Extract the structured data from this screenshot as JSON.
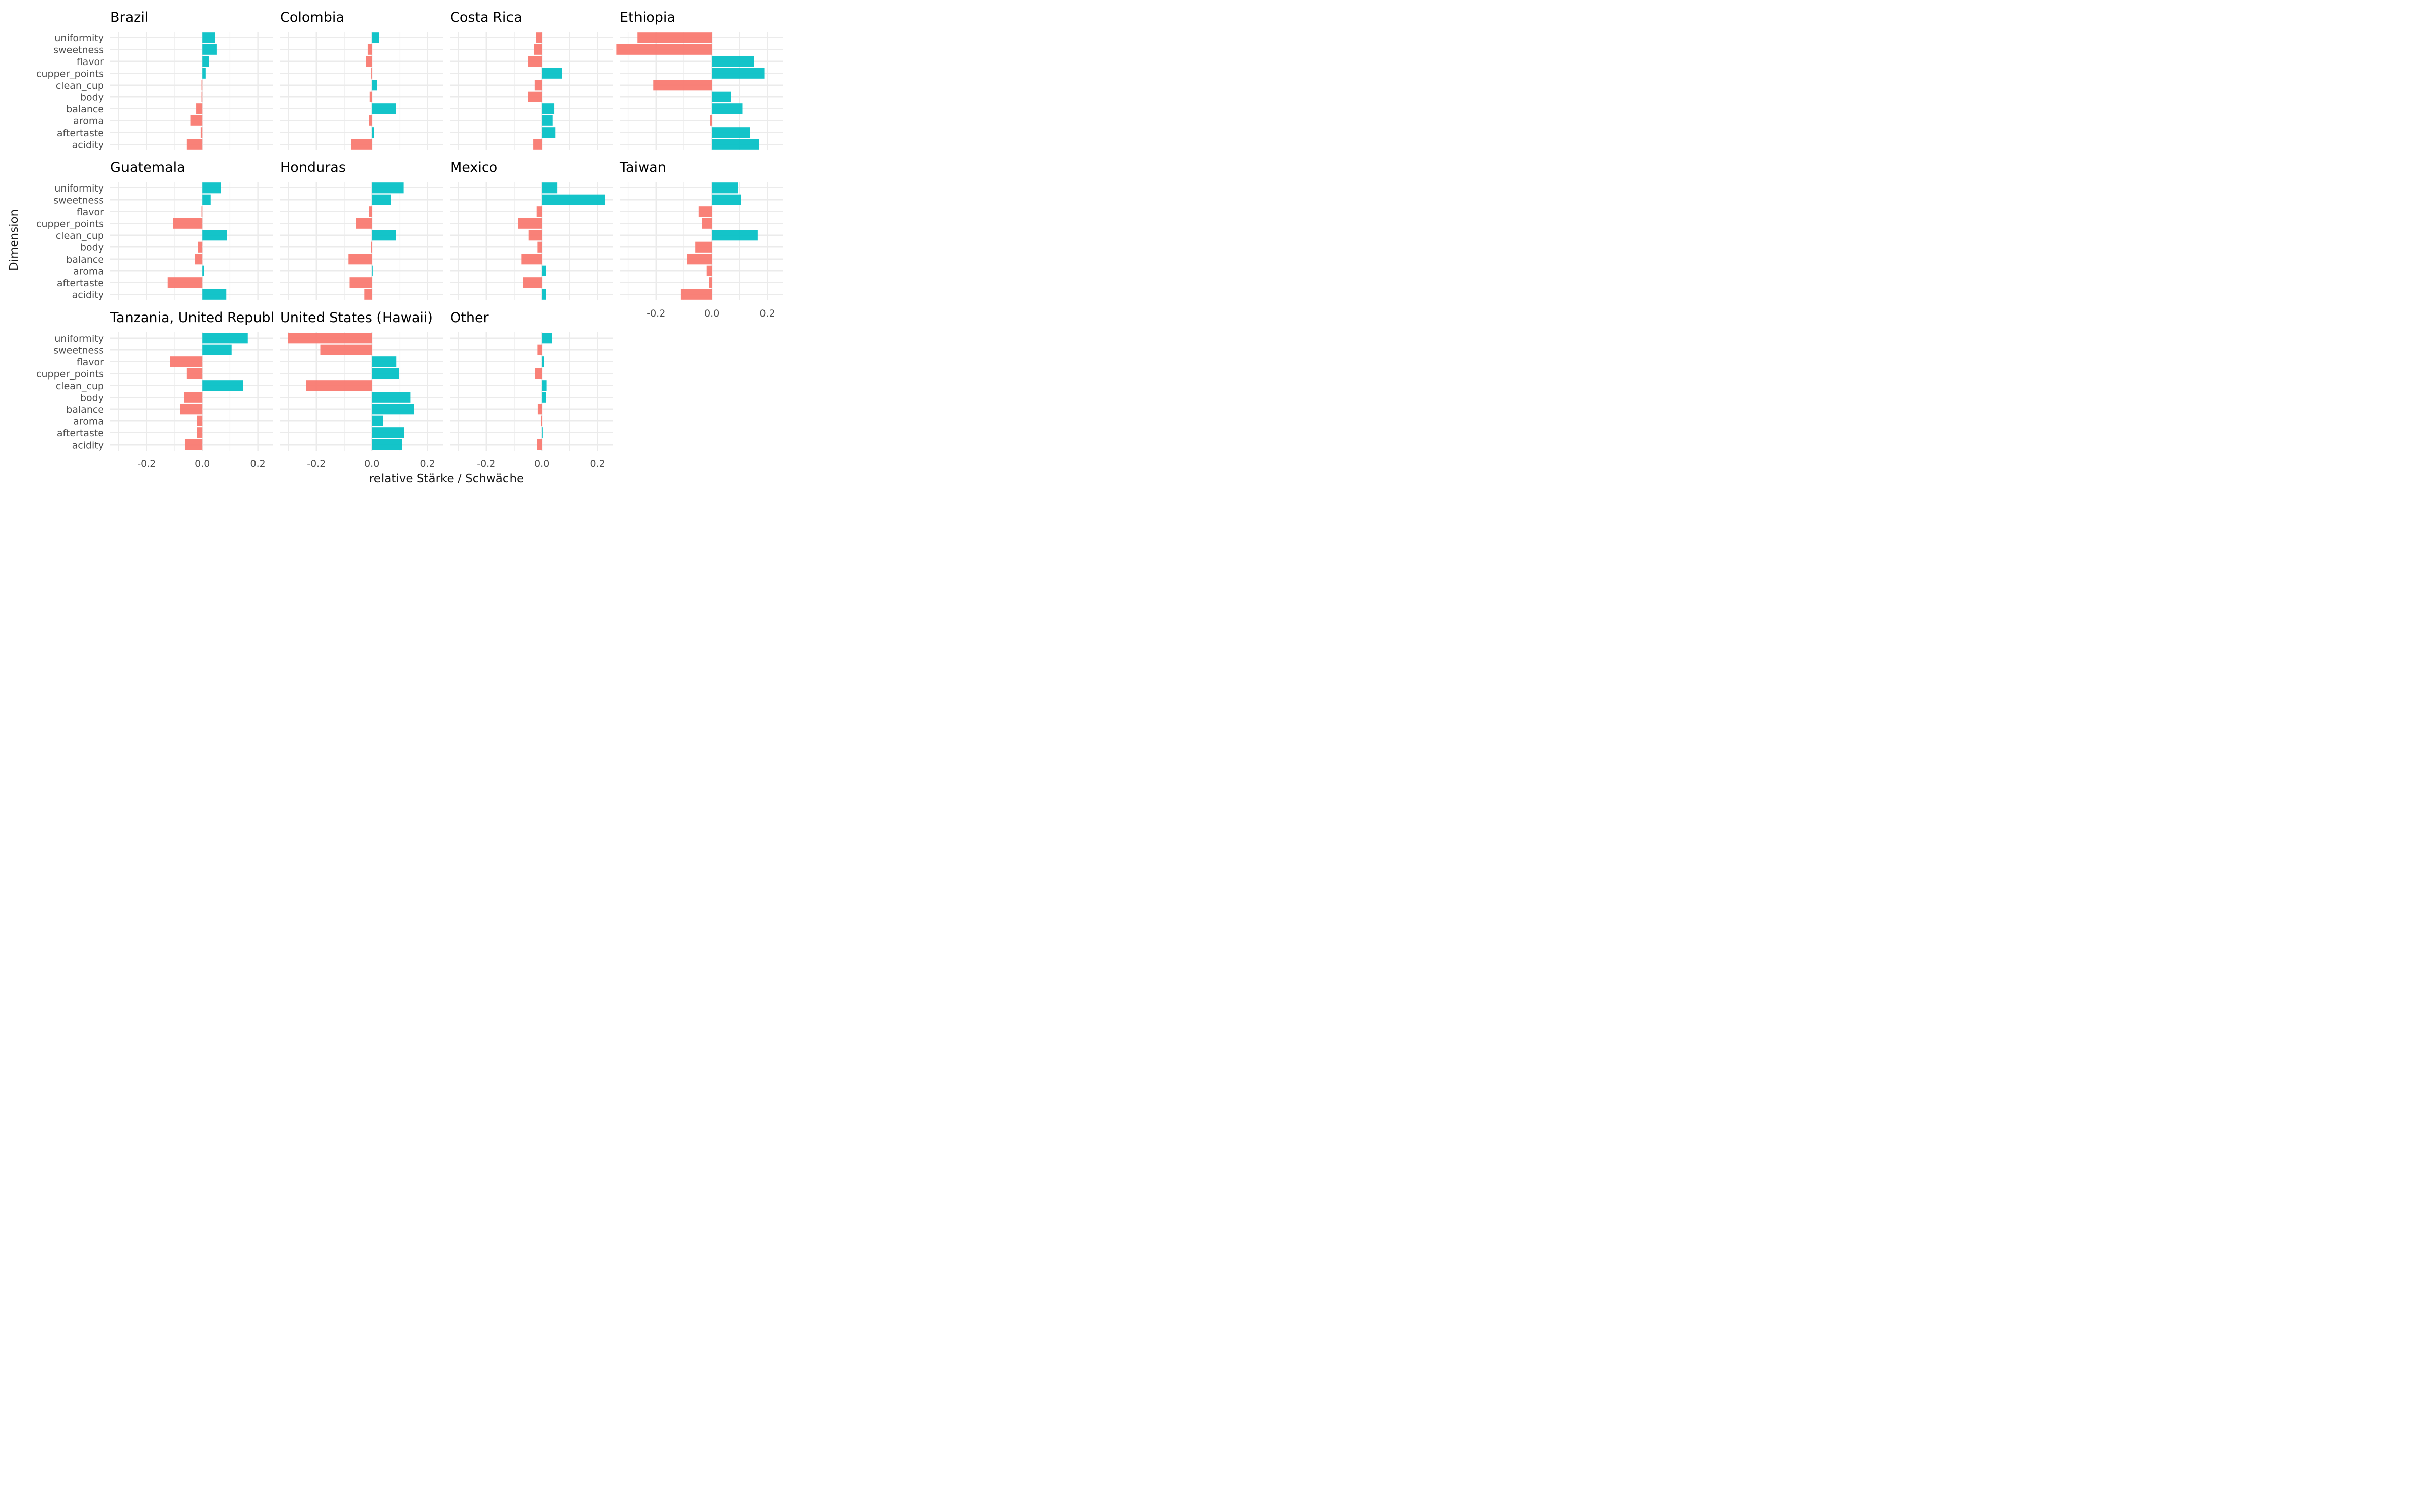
{
  "chart_data": {
    "type": "bar",
    "orientation": "horizontal",
    "facet_layout": "4 columns x 3 rows",
    "xlabel": "relative Stärke / Schwäche",
    "ylabel": "Dimension",
    "xlim": [
      -0.33,
      0.255
    ],
    "xticks": [
      -0.2,
      0.0,
      0.2
    ],
    "xtick_labels": [
      "-0.2",
      "0.0",
      "0.2"
    ],
    "grid": true,
    "categories": [
      "uniformity",
      "sweetness",
      "flavor",
      "cupper_points",
      "clean_cup",
      "body",
      "balance",
      "aroma",
      "aftertaste",
      "acidity"
    ],
    "colors": {
      "negative": "#F8766D",
      "positive": "#00BFC4"
    },
    "panels": [
      {
        "title": "Brazil",
        "values": [
          0.045,
          0.052,
          0.025,
          0.012,
          -0.003,
          -0.003,
          -0.022,
          -0.041,
          -0.006,
          -0.055
        ]
      },
      {
        "title": "Colombia",
        "values": [
          0.025,
          -0.015,
          -0.022,
          -0.002,
          0.019,
          -0.008,
          0.085,
          -0.011,
          0.007,
          -0.076
        ]
      },
      {
        "title": "Costa Rica",
        "values": [
          -0.022,
          -0.028,
          -0.051,
          0.073,
          -0.026,
          -0.051,
          0.045,
          0.039,
          0.049,
          -0.031
        ]
      },
      {
        "title": "Ethiopia",
        "values": [
          -0.268,
          -0.342,
          0.152,
          0.189,
          -0.21,
          0.069,
          0.111,
          -0.006,
          0.139,
          0.17
        ]
      },
      {
        "title": "Guatemala",
        "values": [
          0.068,
          0.03,
          -0.003,
          -0.105,
          0.089,
          -0.016,
          -0.027,
          0.006,
          -0.124,
          0.087
        ]
      },
      {
        "title": "Honduras",
        "values": [
          0.113,
          0.068,
          -0.011,
          -0.057,
          0.085,
          -0.003,
          -0.085,
          0.003,
          -0.081,
          -0.027
        ]
      },
      {
        "title": "Mexico",
        "values": [
          0.056,
          0.226,
          -0.019,
          -0.086,
          -0.048,
          -0.016,
          -0.074,
          0.015,
          -0.069,
          0.015
        ]
      },
      {
        "title": "Taiwan",
        "values": [
          0.095,
          0.106,
          -0.046,
          -0.036,
          0.166,
          -0.058,
          -0.088,
          -0.019,
          -0.011,
          -0.111
        ]
      },
      {
        "title": "Tanzania, United Republic Of",
        "values": [
          0.164,
          0.106,
          -0.116,
          -0.055,
          0.148,
          -0.065,
          -0.08,
          -0.019,
          -0.019,
          -0.062
        ]
      },
      {
        "title": "United States (Hawaii)",
        "values": [
          -0.302,
          -0.186,
          0.087,
          0.097,
          -0.236,
          0.138,
          0.151,
          0.038,
          0.115,
          0.108
        ]
      },
      {
        "title": "Other",
        "values": [
          0.036,
          -0.016,
          0.008,
          -0.025,
          0.017,
          0.015,
          -0.015,
          -0.004,
          0.003,
          -0.017
        ]
      }
    ]
  }
}
